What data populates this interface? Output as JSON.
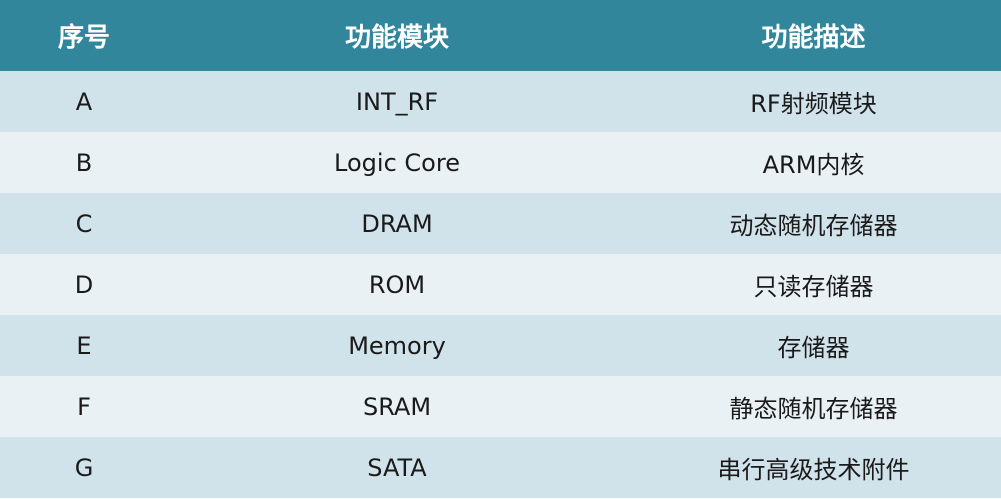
{
  "table": {
    "headers": [
      "序号",
      "功能模块",
      "功能描述"
    ],
    "rows": [
      {
        "id": "A",
        "module": "INT_RF",
        "desc": "RF射频模块"
      },
      {
        "id": "B",
        "module": "Logic Core",
        "desc": "ARM内核"
      },
      {
        "id": "C",
        "module": "DRAM",
        "desc": "动态随机存储器"
      },
      {
        "id": "D",
        "module": "ROM",
        "desc": "只读存储器"
      },
      {
        "id": "E",
        "module": "Memory",
        "desc": "存储器"
      },
      {
        "id": "F",
        "module": "SRAM",
        "desc": "静态随机存储器"
      },
      {
        "id": "G",
        "module": "SATA",
        "desc": "串行高级技术附件"
      }
    ]
  },
  "colors": {
    "header_bg": "#31869b",
    "row_odd_bg": "#d0e2ea",
    "row_even_bg": "#eaf1f5"
  }
}
